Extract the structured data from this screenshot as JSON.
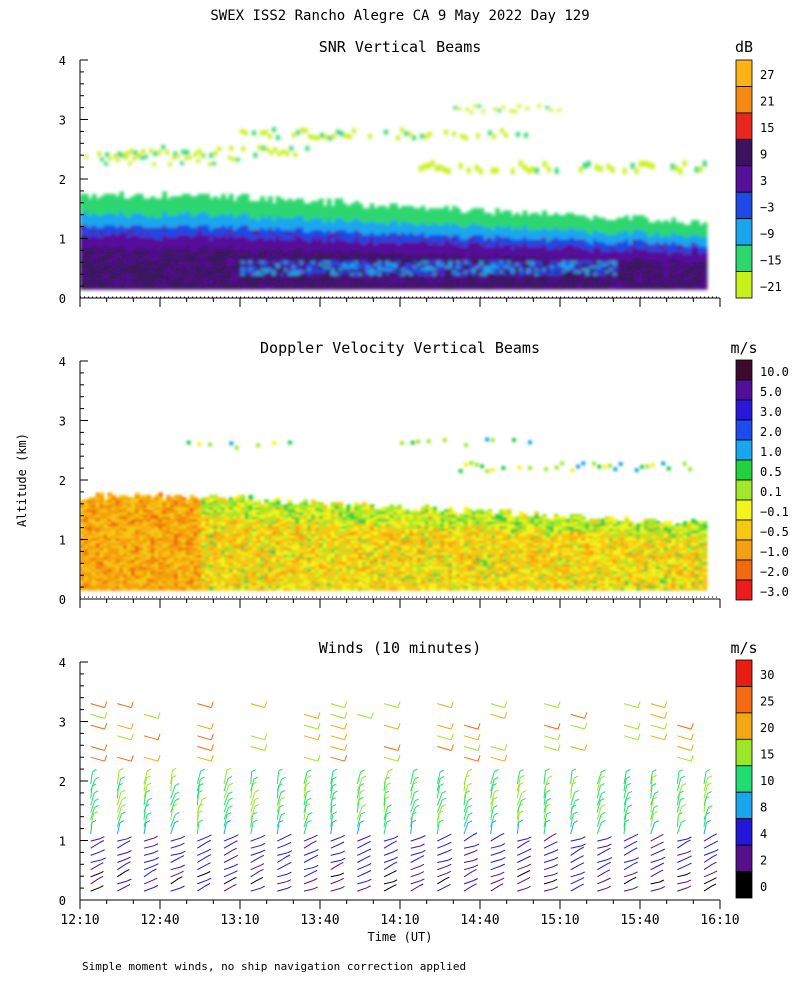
{
  "chart_data": {
    "type": "heatmap",
    "title": "SWEX ISS2 Rancho Alegre CA   9 May 2022 Day 129",
    "ylabel": "Altitude (km)",
    "xlabel": "Time (UT)",
    "footnote": "Simple moment winds, no ship navigation correction applied",
    "x_ticks": [
      "12:10",
      "12:40",
      "13:10",
      "13:40",
      "14:10",
      "14:40",
      "15:10",
      "15:40",
      "16:10"
    ],
    "y_ticks": [
      "0",
      "1",
      "2",
      "3",
      "4"
    ],
    "ylim": [
      0,
      4
    ],
    "xlim_minutes_after_1210": [
      0,
      240
    ],
    "panels": [
      {
        "title": "SNR Vertical Beams",
        "units": "dB",
        "colorbar": [
          "27",
          "21",
          "15",
          "9",
          "3",
          "−3",
          "−9",
          "−15",
          "−21"
        ],
        "colors": [
          "#fbb414",
          "#f48a10",
          "#e8261e",
          "#3c1260",
          "#56119a",
          "#1f49e6",
          "#1aa6ee",
          "#2ed670",
          "#c8f01c"
        ],
        "summary": "Strong returns (3 to 15 dB) below 1 km, weaker layers (-21 to -9 dB) up to about 1.7 km, with scattered thin layers near 2.2 to 2.6 km and above 3 km."
      },
      {
        "title": "Doppler Velocity Vertical Beams",
        "units": "m/s",
        "colorbar": [
          "10.0",
          "5.0",
          "3.0",
          "2.0",
          "1.0",
          "0.5",
          "0.1",
          "−0.1",
          "−0.5",
          "−1.0",
          "−2.0",
          "−3.0"
        ],
        "colors": [
          "#3c0a2c",
          "#52109a",
          "#2a18d8",
          "#1c4cee",
          "#1aa6ee",
          "#22d040",
          "#a0e82a",
          "#f4f41c",
          "#f6c812",
          "#f4a010",
          "#f06a10",
          "#ec1c1c"
        ],
        "summary": "Mostly weak downward velocities (-0.1 to -1.0 m/s) between 0.1 and 1.7 km; patchy values near 2.2 to 2.7 km."
      },
      {
        "title": "Winds (10 minutes)",
        "units": "m/s",
        "colorbar": [
          "30",
          "25",
          "20",
          "15",
          "10",
          "8",
          "4",
          "2",
          "0"
        ],
        "colors": [
          "#e81e12",
          "#f46a10",
          "#f2a812",
          "#9ae628",
          "#22dc70",
          "#1aa6ee",
          "#2318d8",
          "#56108a",
          "#000000"
        ],
        "summary": "Wind barbs every 10 minutes; light winds (0-8 m/s) below 1 km, 10-15 m/s between 1 and 2 km, 15-30 m/s aloft near 2.5 to 3.5 km."
      }
    ]
  }
}
